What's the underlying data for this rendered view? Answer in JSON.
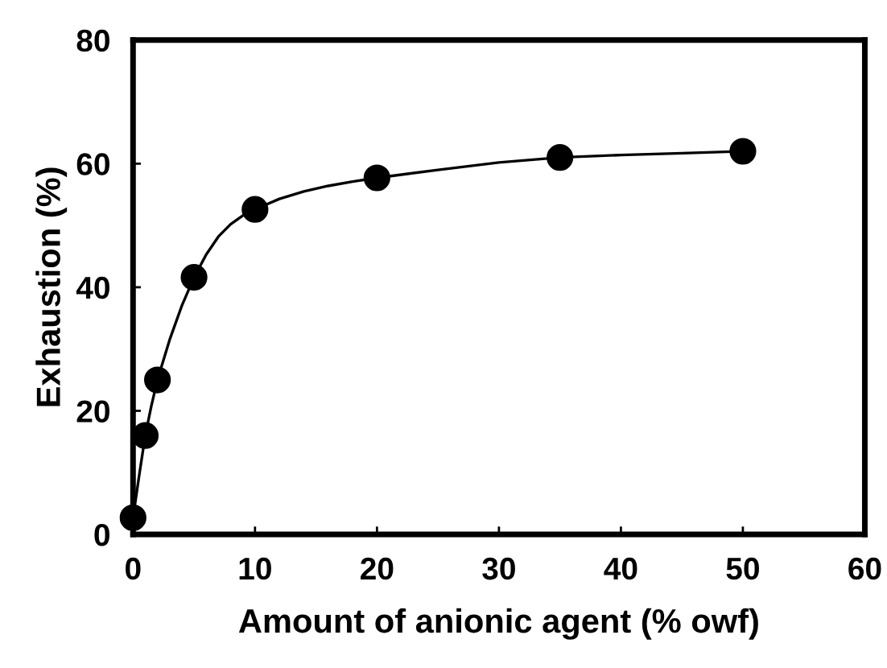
{
  "chart_data": {
    "type": "scatter",
    "xlabel": "Amount of anionic agent (% owf)",
    "ylabel": "Exhaustion (%)",
    "x": [
      0,
      1,
      2,
      5,
      10,
      20,
      35,
      50
    ],
    "series": [
      {
        "color": "#000000",
        "values": [
          2.7,
          16.0,
          25.0,
          41.6,
          52.6,
          57.7,
          61.0,
          62.0
        ],
        "marker": "circle"
      },
      {
        "type": "line",
        "color": "#000000",
        "line_style": "solid",
        "x": [
          0,
          0.5,
          1,
          1.5,
          2,
          3,
          4,
          5,
          6,
          7,
          8,
          9,
          10,
          12,
          14,
          16,
          18,
          20,
          25,
          30,
          35,
          40,
          45,
          50
        ],
        "values": [
          2.7,
          9.5,
          16,
          20.8,
          25,
          31.5,
          37,
          41.6,
          45.3,
          48.2,
          50.2,
          51.6,
          52.6,
          54.3,
          55.5,
          56.4,
          57.1,
          57.7,
          59,
          60.2,
          61,
          61.4,
          61.7,
          62
        ]
      }
    ],
    "xlim": [
      0,
      60
    ],
    "xticks": [
      0,
      10,
      20,
      30,
      40,
      50,
      60
    ],
    "ylim": [
      0,
      80
    ],
    "yticks": [
      0,
      20,
      40,
      60,
      80
    ]
  }
}
